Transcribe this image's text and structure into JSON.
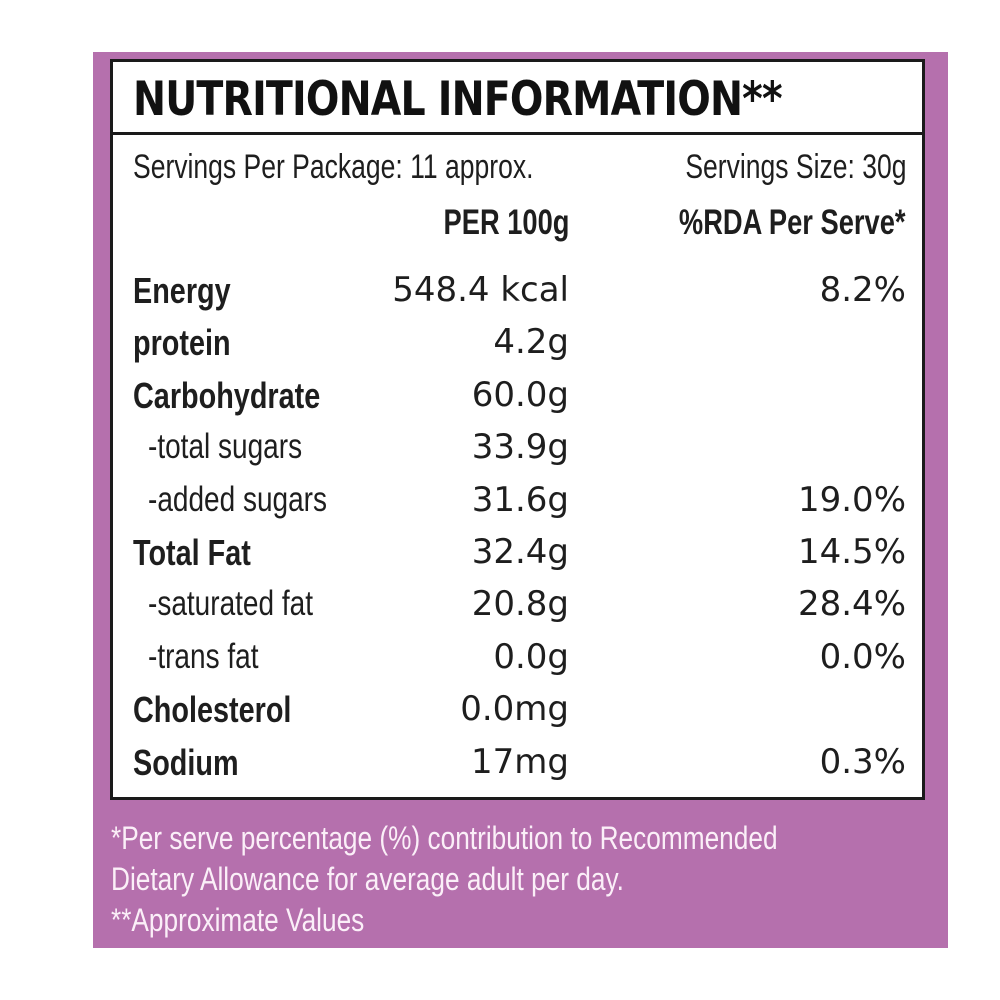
{
  "colors": {
    "panel": "#b570ad",
    "border": "#1a1a1a",
    "footnote_text": "#fbeff8"
  },
  "label": {
    "title": "NUTRITIONAL INFORMATION**",
    "servings_per_package": "Servings Per Package: 11 approx.",
    "serving_size": "Servings Size: 30g",
    "col_per100g": "PER 100g",
    "col_rda": "%RDA Per Serve*"
  },
  "rows": [
    {
      "name": "Energy",
      "per100": "548.4 kcal",
      "rda": "8.2%",
      "type": "main"
    },
    {
      "name": "protein",
      "per100": "4.2g",
      "rda": "",
      "type": "main"
    },
    {
      "name": "Carbohydrate",
      "per100": "60.0g",
      "rda": "",
      "type": "main"
    },
    {
      "name": "-total sugars",
      "per100": "33.9g",
      "rda": "",
      "type": "sub"
    },
    {
      "name": "-added sugars",
      "per100": "31.6g",
      "rda": "19.0%",
      "type": "sub"
    },
    {
      "name": "Total Fat",
      "per100": "32.4g",
      "rda": "14.5%",
      "type": "main"
    },
    {
      "name": "-saturated fat",
      "per100": "20.8g",
      "rda": "28.4%",
      "type": "sub"
    },
    {
      "name": "-trans fat",
      "per100": "0.0g",
      "rda": "0.0%",
      "type": "sub"
    },
    {
      "name": "Cholesterol",
      "per100": "0.0mg",
      "rda": "",
      "type": "main"
    },
    {
      "name": "Sodium",
      "per100": "17mg",
      "rda": "0.3%",
      "type": "main"
    }
  ],
  "footnotes": [
    "*Per serve percentage (%) contribution to Recommended",
    "Dietary Allowance for average adult per day.",
    "**Approximate Values"
  ]
}
